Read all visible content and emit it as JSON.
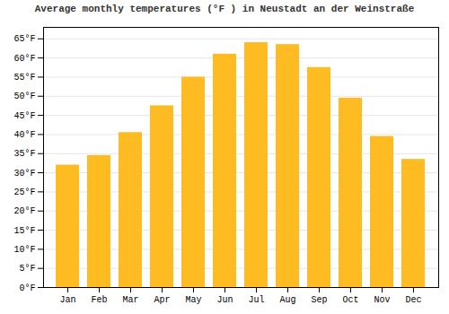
{
  "chart_data": {
    "type": "bar",
    "title": "Average monthly temperatures (°F ) in Neustadt an der Weinstraße",
    "categories": [
      "Jan",
      "Feb",
      "Mar",
      "Apr",
      "May",
      "Jun",
      "Jul",
      "Aug",
      "Sep",
      "Oct",
      "Nov",
      "Dec"
    ],
    "values": [
      32,
      34.5,
      40.5,
      47.5,
      55,
      61,
      64,
      63.5,
      57.5,
      49.5,
      39.5,
      33.5
    ],
    "color": "#FFBB22",
    "ylim": [
      0,
      68
    ],
    "yticks": [
      {
        "value": 0,
        "label": "0°F"
      },
      {
        "value": 5,
        "label": "5°F"
      },
      {
        "value": 10,
        "label": "10°F"
      },
      {
        "value": 15,
        "label": "15°F"
      },
      {
        "value": 20,
        "label": "20°F"
      },
      {
        "value": 25,
        "label": "25°F"
      },
      {
        "value": 30,
        "label": "30°F"
      },
      {
        "value": 35,
        "label": "35°F"
      },
      {
        "value": 40,
        "label": "40°F"
      },
      {
        "value": 45,
        "label": "45°F"
      },
      {
        "value": 50,
        "label": "50°F"
      },
      {
        "value": 55,
        "label": "55°F"
      },
      {
        "value": 60,
        "label": "60°F"
      },
      {
        "value": 65,
        "label": "65°F"
      }
    ],
    "grid": true
  }
}
